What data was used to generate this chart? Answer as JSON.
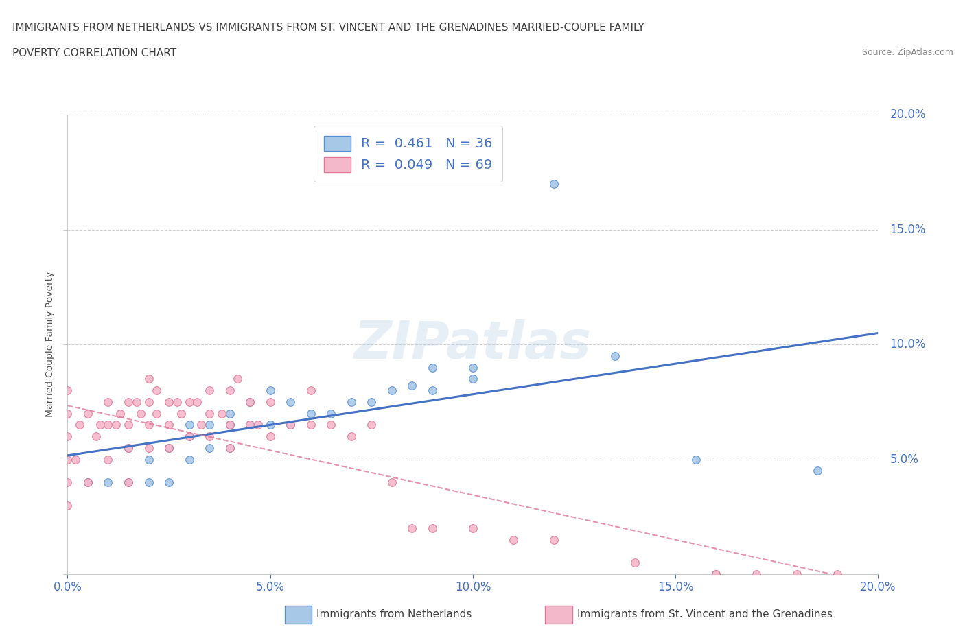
{
  "title_line1": "IMMIGRANTS FROM NETHERLANDS VS IMMIGRANTS FROM ST. VINCENT AND THE GRENADINES MARRIED-COUPLE FAMILY",
  "title_line2": "POVERTY CORRELATION CHART",
  "source_text": "Source: ZipAtlas.com",
  "ylabel": "Married-Couple Family Poverty",
  "watermark": "ZIPatlas",
  "blue_R": 0.461,
  "blue_N": 36,
  "pink_R": 0.049,
  "pink_N": 69,
  "blue_color": "#a8c8e8",
  "blue_edge_color": "#5b8fd4",
  "pink_color": "#f4b8cb",
  "pink_edge_color": "#e07898",
  "blue_line_color": "#4472c4",
  "pink_line_color": "#e07898",
  "axis_tick_color": "#4472c4",
  "title_color": "#404040",
  "source_color": "#888888",
  "xmin": 0.0,
  "xmax": 0.2,
  "ymin": 0.0,
  "ymax": 0.2,
  "blue_scatter_x": [
    0.005,
    0.01,
    0.015,
    0.015,
    0.02,
    0.02,
    0.025,
    0.025,
    0.03,
    0.03,
    0.03,
    0.035,
    0.035,
    0.04,
    0.04,
    0.04,
    0.045,
    0.045,
    0.05,
    0.05,
    0.055,
    0.055,
    0.06,
    0.065,
    0.07,
    0.075,
    0.08,
    0.085,
    0.09,
    0.09,
    0.1,
    0.1,
    0.12,
    0.135,
    0.155,
    0.185
  ],
  "blue_scatter_y": [
    0.04,
    0.04,
    0.04,
    0.055,
    0.04,
    0.05,
    0.04,
    0.055,
    0.05,
    0.06,
    0.065,
    0.055,
    0.065,
    0.055,
    0.065,
    0.07,
    0.065,
    0.075,
    0.065,
    0.08,
    0.065,
    0.075,
    0.07,
    0.07,
    0.075,
    0.075,
    0.08,
    0.082,
    0.08,
    0.09,
    0.085,
    0.09,
    0.17,
    0.095,
    0.05,
    0.045
  ],
  "pink_scatter_x": [
    0.0,
    0.0,
    0.0,
    0.0,
    0.0,
    0.0,
    0.002,
    0.003,
    0.005,
    0.005,
    0.007,
    0.008,
    0.01,
    0.01,
    0.01,
    0.012,
    0.013,
    0.015,
    0.015,
    0.015,
    0.015,
    0.017,
    0.018,
    0.02,
    0.02,
    0.02,
    0.02,
    0.022,
    0.022,
    0.025,
    0.025,
    0.025,
    0.027,
    0.028,
    0.03,
    0.03,
    0.032,
    0.033,
    0.035,
    0.035,
    0.035,
    0.038,
    0.04,
    0.04,
    0.04,
    0.042,
    0.045,
    0.045,
    0.047,
    0.05,
    0.05,
    0.055,
    0.06,
    0.06,
    0.065,
    0.07,
    0.075,
    0.08,
    0.085,
    0.09,
    0.1,
    0.11,
    0.12,
    0.14,
    0.16,
    0.16,
    0.17,
    0.18,
    0.19
  ],
  "pink_scatter_y": [
    0.03,
    0.04,
    0.05,
    0.06,
    0.07,
    0.08,
    0.05,
    0.065,
    0.04,
    0.07,
    0.06,
    0.065,
    0.05,
    0.065,
    0.075,
    0.065,
    0.07,
    0.04,
    0.055,
    0.065,
    0.075,
    0.075,
    0.07,
    0.055,
    0.065,
    0.075,
    0.085,
    0.07,
    0.08,
    0.055,
    0.065,
    0.075,
    0.075,
    0.07,
    0.06,
    0.075,
    0.075,
    0.065,
    0.06,
    0.07,
    0.08,
    0.07,
    0.055,
    0.065,
    0.08,
    0.085,
    0.065,
    0.075,
    0.065,
    0.06,
    0.075,
    0.065,
    0.065,
    0.08,
    0.065,
    0.06,
    0.065,
    0.04,
    0.02,
    0.02,
    0.02,
    0.015,
    0.015,
    0.005,
    0.0,
    0.0,
    0.0,
    0.0,
    0.0
  ],
  "dashed_line_color": "#d0d0d0",
  "background_color": "#ffffff",
  "legend_label1": "R =  0.461   N = 36",
  "legend_label2": "R =  0.049   N = 69",
  "bottom_label1": "Immigrants from Netherlands",
  "bottom_label2": "Immigrants from St. Vincent and the Grenadines"
}
